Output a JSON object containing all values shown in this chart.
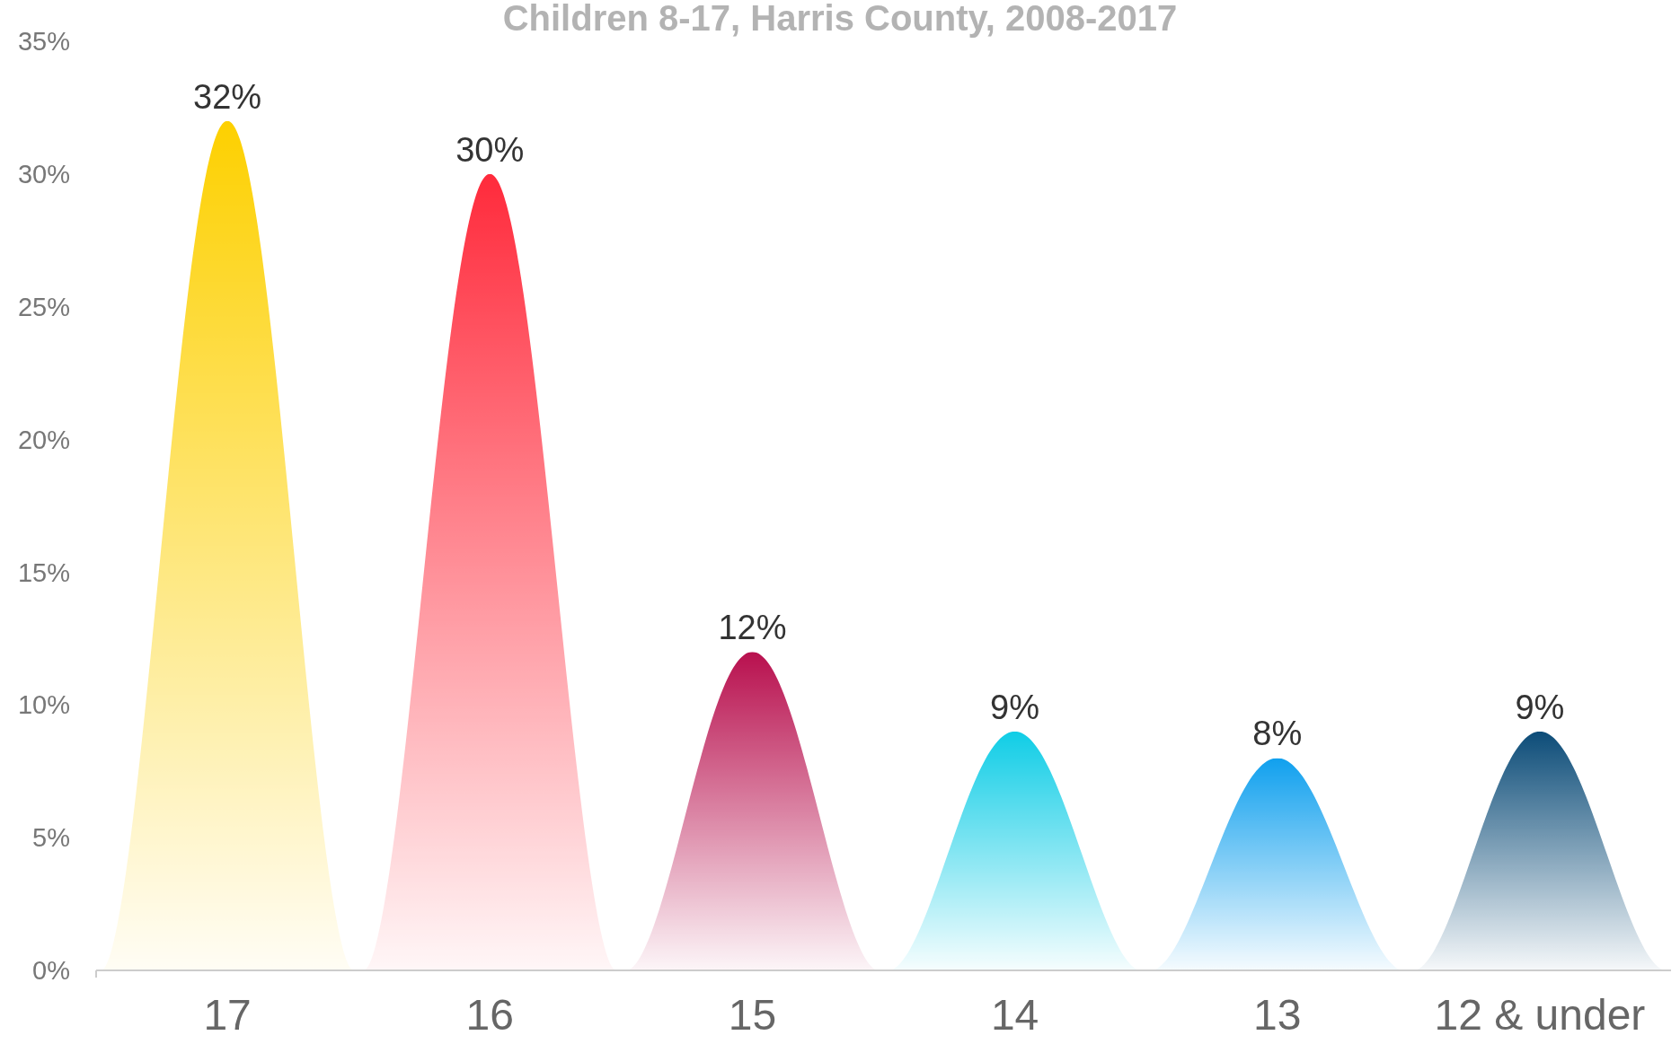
{
  "chart_data": {
    "type": "bar",
    "title": "Children 8-17, Harris County, 2008-2017",
    "categories": [
      "17",
      "16",
      "15",
      "14",
      "13",
      "12 & under"
    ],
    "values": [
      32,
      30,
      12,
      9,
      8,
      9
    ],
    "colors": [
      "#fdd000",
      "#ff2a3b",
      "#b8104e",
      "#10cde6",
      "#10a0ee",
      "#0c4c78"
    ],
    "ylim": [
      0,
      35
    ],
    "yticks": [
      {
        "value": 0,
        "label": "0%"
      },
      {
        "value": 5,
        "label": "5%"
      },
      {
        "value": 10,
        "label": "10%"
      },
      {
        "value": 15,
        "label": "15%"
      },
      {
        "value": 20,
        "label": "20%"
      },
      {
        "value": 25,
        "label": "25%"
      },
      {
        "value": 30,
        "label": "30%"
      },
      {
        "value": 35,
        "label": "35%"
      }
    ],
    "value_labels": [
      "32%",
      "30%",
      "12%",
      "9%",
      "8%",
      "9%"
    ],
    "grid": false
  }
}
